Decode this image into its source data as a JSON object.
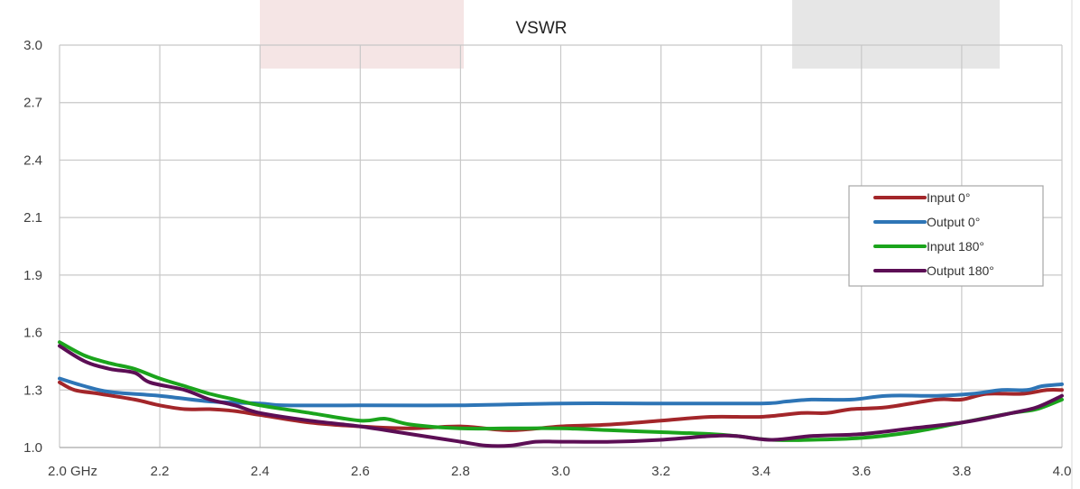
{
  "chart_data": {
    "type": "line",
    "title": "VSWR",
    "x_tick_labels": [
      "2.0  GHz",
      "2.2",
      "2.4",
      "2.6",
      "2.8",
      "3.0",
      "3.2",
      "3.4",
      "3.6",
      "3.8",
      "4.0"
    ],
    "x_ticks": [
      2.0,
      2.2,
      2.4,
      2.6,
      2.8,
      3.0,
      3.2,
      3.4,
      3.6,
      3.8,
      4.0
    ],
    "y_tick_labels": [
      "1.0",
      "1.3",
      "1.6",
      "1.9",
      "2.1",
      "2.4",
      "2.7",
      "3.0"
    ],
    "xlim": [
      2.0,
      4.0
    ],
    "grid": true,
    "legend_position": "right",
    "series": [
      {
        "name": "Input 0°",
        "color": "#a3262a",
        "points": [
          [
            2.0,
            1.34
          ],
          [
            2.03,
            1.3
          ],
          [
            2.08,
            1.28
          ],
          [
            2.15,
            1.25
          ],
          [
            2.2,
            1.22
          ],
          [
            2.25,
            1.2
          ],
          [
            2.3,
            1.2
          ],
          [
            2.35,
            1.19
          ],
          [
            2.4,
            1.17
          ],
          [
            2.5,
            1.13
          ],
          [
            2.6,
            1.11
          ],
          [
            2.7,
            1.1
          ],
          [
            2.8,
            1.11
          ],
          [
            2.9,
            1.09
          ],
          [
            3.0,
            1.11
          ],
          [
            3.1,
            1.12
          ],
          [
            3.2,
            1.14
          ],
          [
            3.3,
            1.16
          ],
          [
            3.4,
            1.16
          ],
          [
            3.48,
            1.18
          ],
          [
            3.53,
            1.18
          ],
          [
            3.58,
            1.2
          ],
          [
            3.65,
            1.21
          ],
          [
            3.75,
            1.25
          ],
          [
            3.8,
            1.25
          ],
          [
            3.85,
            1.28
          ],
          [
            3.92,
            1.28
          ],
          [
            3.97,
            1.3
          ],
          [
            4.0,
            1.3
          ]
        ]
      },
      {
        "name": "Output 0°",
        "color": "#2e75b6",
        "points": [
          [
            2.0,
            1.36
          ],
          [
            2.05,
            1.32
          ],
          [
            2.1,
            1.29
          ],
          [
            2.2,
            1.27
          ],
          [
            2.3,
            1.24
          ],
          [
            2.4,
            1.23
          ],
          [
            2.45,
            1.22
          ],
          [
            2.6,
            1.22
          ],
          [
            2.8,
            1.22
          ],
          [
            3.0,
            1.23
          ],
          [
            3.2,
            1.23
          ],
          [
            3.4,
            1.23
          ],
          [
            3.45,
            1.24
          ],
          [
            3.5,
            1.25
          ],
          [
            3.58,
            1.25
          ],
          [
            3.65,
            1.27
          ],
          [
            3.75,
            1.27
          ],
          [
            3.82,
            1.28
          ],
          [
            3.88,
            1.3
          ],
          [
            3.93,
            1.3
          ],
          [
            3.96,
            1.32
          ],
          [
            4.0,
            1.33
          ]
        ]
      },
      {
        "name": "Input 180°",
        "color": "#1ba41c",
        "points": [
          [
            2.0,
            1.55
          ],
          [
            2.05,
            1.48
          ],
          [
            2.1,
            1.44
          ],
          [
            2.15,
            1.41
          ],
          [
            2.2,
            1.36
          ],
          [
            2.25,
            1.32
          ],
          [
            2.3,
            1.28
          ],
          [
            2.35,
            1.25
          ],
          [
            2.4,
            1.22
          ],
          [
            2.5,
            1.18
          ],
          [
            2.6,
            1.14
          ],
          [
            2.65,
            1.15
          ],
          [
            2.7,
            1.12
          ],
          [
            2.8,
            1.1
          ],
          [
            2.9,
            1.1
          ],
          [
            3.0,
            1.1
          ],
          [
            3.1,
            1.09
          ],
          [
            3.2,
            1.08
          ],
          [
            3.3,
            1.07
          ],
          [
            3.35,
            1.06
          ],
          [
            3.42,
            1.04
          ],
          [
            3.5,
            1.04
          ],
          [
            3.6,
            1.05
          ],
          [
            3.7,
            1.08
          ],
          [
            3.8,
            1.13
          ],
          [
            3.9,
            1.18
          ],
          [
            3.95,
            1.2
          ],
          [
            4.0,
            1.25
          ]
        ]
      },
      {
        "name": "Output 180°",
        "color": "#5c0e55",
        "points": [
          [
            2.0,
            1.53
          ],
          [
            2.05,
            1.45
          ],
          [
            2.1,
            1.41
          ],
          [
            2.15,
            1.39
          ],
          [
            2.18,
            1.34
          ],
          [
            2.25,
            1.3
          ],
          [
            2.3,
            1.25
          ],
          [
            2.35,
            1.22
          ],
          [
            2.4,
            1.18
          ],
          [
            2.5,
            1.14
          ],
          [
            2.6,
            1.11
          ],
          [
            2.7,
            1.07
          ],
          [
            2.8,
            1.03
          ],
          [
            2.85,
            1.01
          ],
          [
            2.9,
            1.01
          ],
          [
            2.95,
            1.03
          ],
          [
            3.0,
            1.03
          ],
          [
            3.1,
            1.03
          ],
          [
            3.2,
            1.04
          ],
          [
            3.3,
            1.06
          ],
          [
            3.35,
            1.06
          ],
          [
            3.42,
            1.04
          ],
          [
            3.5,
            1.06
          ],
          [
            3.6,
            1.07
          ],
          [
            3.7,
            1.1
          ],
          [
            3.8,
            1.13
          ],
          [
            3.9,
            1.18
          ],
          [
            3.95,
            1.21
          ],
          [
            4.0,
            1.27
          ]
        ]
      }
    ]
  }
}
